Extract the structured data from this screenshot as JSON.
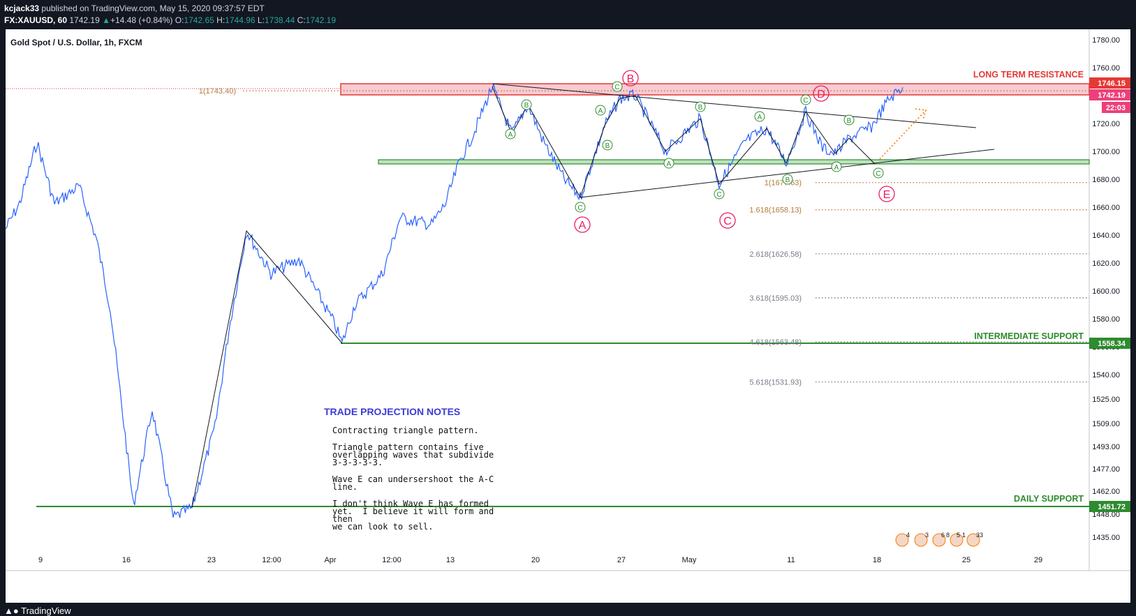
{
  "header": {
    "author": "kcjack33",
    "published_text": "published on TradingView.com, May 15, 2020 09:37:57 EDT",
    "symbol": "FX:XAUUSD, 60",
    "last": "1742.19",
    "change_arrow": "▲",
    "change": "+14.48 (+0.84%)",
    "open_label": "O:",
    "open": "1742.65",
    "high_label": "H:",
    "high": "1744.96",
    "low_label": "L:",
    "low": "1738.44",
    "close_label": "C:",
    "close": "1742.19"
  },
  "chart_title": "Gold Spot / U.S. Dollar, 1h, FXCM",
  "footer": {
    "brand": "TradingView",
    "logo_icon": "tradingview-logo-icon"
  },
  "price_badges": {
    "resistance": "1746.15",
    "last_price": "1742.19",
    "countdown": "22:03",
    "intermediate": "1558.34",
    "daily": "1451.72"
  },
  "labels": {
    "long_term_resistance": "LONG TERM RESISTANCE",
    "intermediate_support": "INTERMEDIATE SUPPORT",
    "daily_support": "DAILY SUPPORT"
  },
  "notes": {
    "title": "TRADE PROJECTION NOTES",
    "p1": "Contracting triangle pattern.",
    "p2": "Triangle pattern contains five\noverlapping waves that subdivide\n3-3-3-3-3.",
    "p3": "Wave E can undersershoot the A-C\nline.",
    "p4": "I don't think Wave E has formed\nyet.  I believe it will form and then\nwe can look to sell."
  },
  "events": [
    "4",
    "3",
    "6",
    "8",
    "5",
    "1",
    "33"
  ],
  "chart_data": {
    "type": "line",
    "title": "Gold Spot / U.S. Dollar, 1h, FXCM",
    "x_ticks": [
      "9",
      "16",
      "23",
      "12:00",
      "Apr",
      "12:00",
      "13",
      "20",
      "27",
      "May",
      "11",
      "18",
      "25",
      "29"
    ],
    "y_ticks": [
      "1780.00",
      "1760.00",
      "1740.00",
      "1720.00",
      "1700.00",
      "1680.00",
      "1660.00",
      "1640.00",
      "1620.00",
      "1600.00",
      "1580.00",
      "1560.00",
      "1540.00",
      "1525.00",
      "1509.00",
      "1493.00",
      "1477.00",
      "1462.00",
      "1448.00",
      "1435.00"
    ],
    "fib_levels": [
      {
        "label": "1(1743.40)",
        "value": 1743.4,
        "color": "#b27a3a"
      },
      {
        "label": "1(1677.63)",
        "value": 1677.63,
        "color": "#b27a3a"
      },
      {
        "label": "1.618(1658.13)",
        "value": 1658.13,
        "color": "#b27a3a"
      },
      {
        "label": "2.618(1626.58)",
        "value": 1626.58,
        "color": "#787b86"
      },
      {
        "label": "3.618(1595.03)",
        "value": 1595.03,
        "color": "#787b86"
      },
      {
        "label": "4.618(1563.48)",
        "value": 1563.48,
        "color": "#787b86"
      },
      {
        "label": "5.618(1531.93)",
        "value": 1531.93,
        "color": "#787b86"
      }
    ],
    "zones": {
      "resistance": [
        1738,
        1746.15
      ],
      "support_band": [
        1690,
        1687
      ]
    },
    "support_lines": [
      1558.34,
      1451.72
    ],
    "waves": [
      "A",
      "B",
      "C",
      "D",
      "E"
    ],
    "colors": {
      "candles": "#2962ff",
      "support": "#2e8b2e",
      "resistance": "#e91e63",
      "fib": "#b27a3a"
    }
  }
}
